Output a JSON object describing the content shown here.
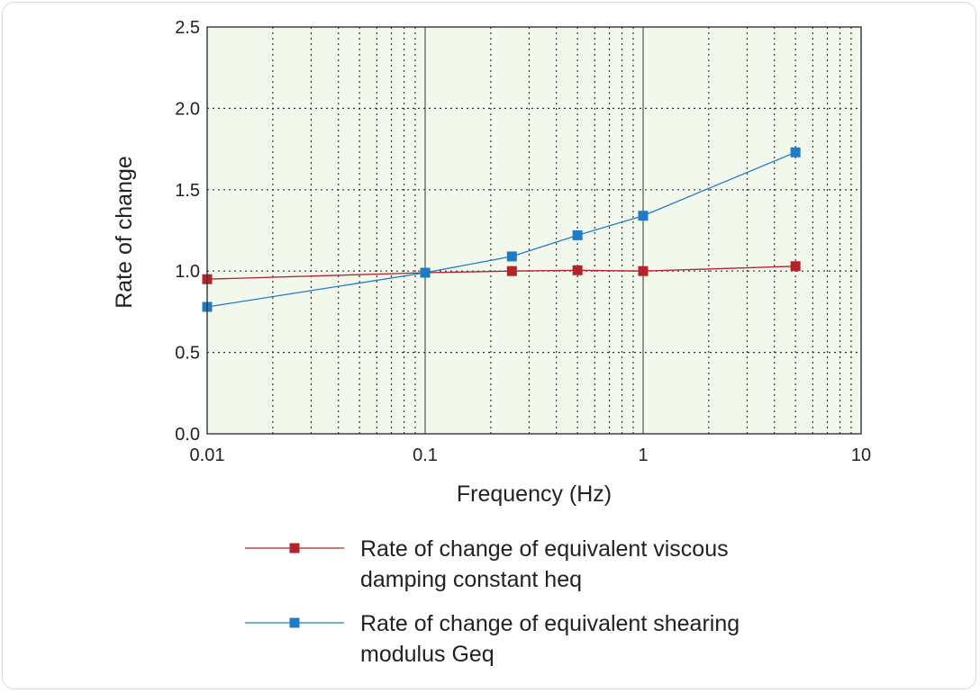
{
  "chart_data": {
    "type": "line",
    "title": "",
    "xlabel": "Frequency (Hz)",
    "ylabel": "Rate of change",
    "xscale": "log",
    "xlim": [
      0.01,
      10
    ],
    "ylim": [
      0.0,
      2.5
    ],
    "xticks": [
      {
        "value": 0.01,
        "label": "0.01"
      },
      {
        "value": 0.1,
        "label": "0.1"
      },
      {
        "value": 1,
        "label": "1"
      },
      {
        "value": 10,
        "label": "10"
      }
    ],
    "yticks": [
      {
        "value": 0.0,
        "label": "0.0"
      },
      {
        "value": 0.5,
        "label": "0.5"
      },
      {
        "value": 1.0,
        "label": "1.0"
      },
      {
        "value": 1.5,
        "label": "1.5"
      },
      {
        "value": 2.0,
        "label": "2.0"
      },
      {
        "value": 2.5,
        "label": "2.5"
      }
    ],
    "grid": true,
    "plot_background": "#f3f8ec",
    "legend_position": "bottom",
    "series": [
      {
        "name": "heq",
        "legend_lines": [
          "Rate of change of equivalent viscous",
          "damping constant heq"
        ],
        "color": "#b5232a",
        "marker": "square",
        "x": [
          0.01,
          0.1,
          0.25,
          0.5,
          1,
          5
        ],
        "values": [
          0.95,
          0.99,
          1.0,
          1.005,
          1.0,
          1.03
        ]
      },
      {
        "name": "Geq",
        "legend_lines": [
          "Rate of change of equivalent shearing",
          "modulus Geq"
        ],
        "color": "#1f7cc4",
        "marker": "square",
        "x": [
          0.01,
          0.1,
          0.25,
          0.5,
          1,
          5
        ],
        "values": [
          0.78,
          0.99,
          1.09,
          1.22,
          1.34,
          1.73
        ]
      }
    ]
  }
}
